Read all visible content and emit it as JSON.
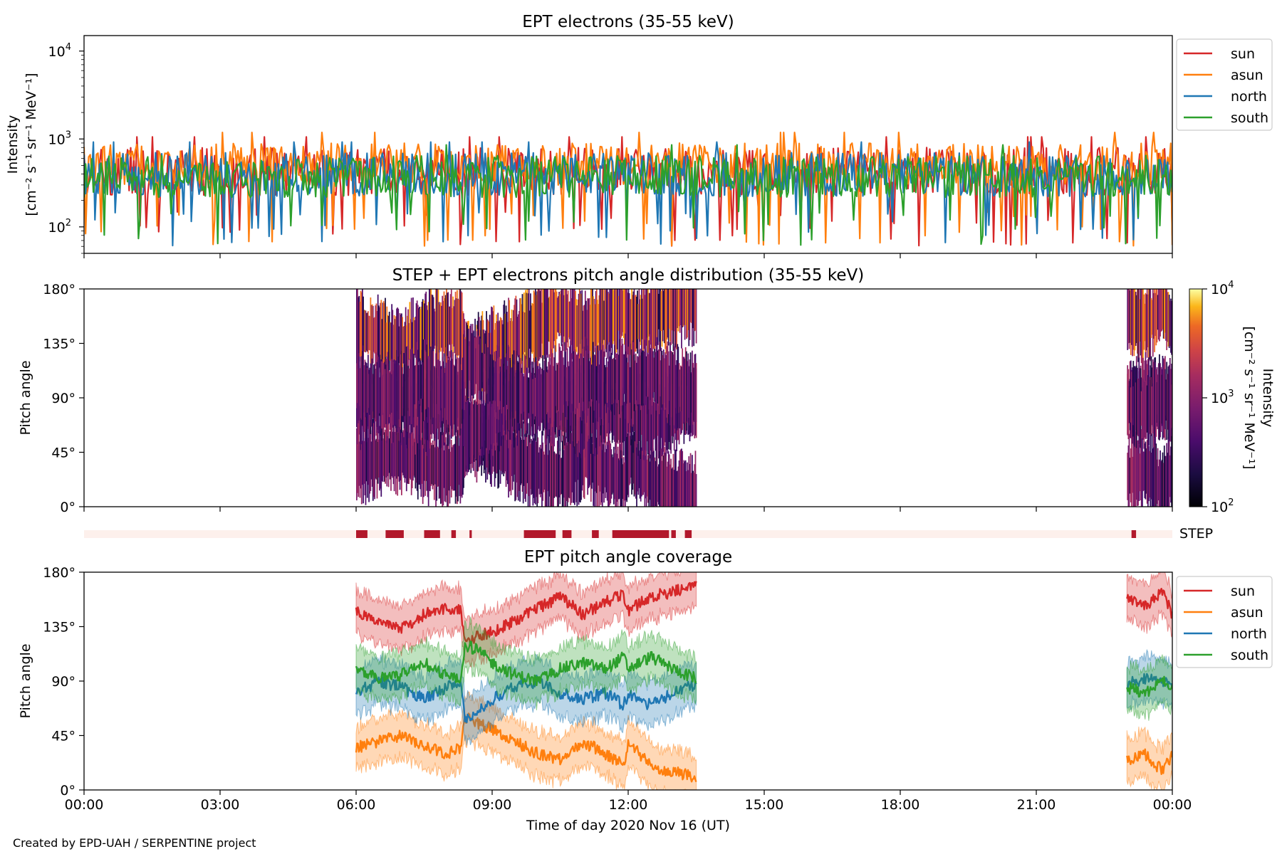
{
  "chart_data": [
    {
      "type": "line",
      "title": "EPT electrons (35-55 keV)",
      "ylabel_line1": "Intensity",
      "ylabel_line2": "[cm⁻² s⁻¹ sr⁻¹ MeV⁻¹]",
      "yscale": "log",
      "ylim": [
        50,
        15000
      ],
      "xlim": [
        0,
        24
      ],
      "yticks": [
        {
          "value": 100,
          "base": "10",
          "exp": "2"
        },
        {
          "value": 1000,
          "base": "10",
          "exp": "3"
        },
        {
          "value": 10000,
          "base": "10",
          "exp": "4"
        }
      ],
      "legend_position": "outside-right-top",
      "series": [
        {
          "name": "sun",
          "color": "#d62728",
          "typical_range": [
            150,
            800
          ],
          "min_dips": 60
        },
        {
          "name": "asun",
          "color": "#ff7f0e",
          "typical_range": [
            200,
            900
          ],
          "min_dips": 60
        },
        {
          "name": "north",
          "color": "#1f77b4",
          "typical_range": [
            150,
            700
          ],
          "min_dips": 60
        },
        {
          "name": "south",
          "color": "#2ca02c",
          "typical_range": [
            150,
            650
          ],
          "min_dips": 60
        }
      ]
    },
    {
      "type": "heatmap",
      "title": "STEP + EPT electrons pitch angle distribution (35-55 keV)",
      "ylabel": "Pitch angle",
      "ylim": [
        0,
        180
      ],
      "yticks": [
        {
          "value": 0,
          "label": "0°"
        },
        {
          "value": 45,
          "label": "45°"
        },
        {
          "value": 90,
          "label": "90°"
        },
        {
          "value": 135,
          "label": "135°"
        },
        {
          "value": 180,
          "label": "180°"
        }
      ],
      "xlim": [
        0,
        24
      ],
      "data_intervals_hours": [
        [
          6.0,
          13.5
        ],
        [
          23.0,
          24.0
        ]
      ],
      "colorbar": {
        "scale": "log",
        "range": [
          100,
          10000
        ],
        "colormap": "inferno",
        "label_line1": "Intensity",
        "label_line2": "[cm⁻² s⁻¹ sr⁻¹ MeV⁻¹]",
        "ticks": [
          {
            "value": 100,
            "base": "10",
            "exp": "2"
          },
          {
            "value": 1000,
            "base": "10",
            "exp": "3"
          },
          {
            "value": 10000,
            "base": "10",
            "exp": "4"
          }
        ]
      }
    },
    {
      "type": "bar",
      "label": "STEP",
      "description_values_hours": [
        [
          6.0,
          6.25
        ],
        [
          6.65,
          7.05
        ],
        [
          7.5,
          7.85
        ],
        [
          8.1,
          8.2
        ],
        [
          8.5,
          8.55
        ],
        [
          9.7,
          10.4
        ],
        [
          10.55,
          10.75
        ],
        [
          11.2,
          11.35
        ],
        [
          11.65,
          12.9
        ],
        [
          12.95,
          13.05
        ],
        [
          13.25,
          13.4
        ],
        [
          23.1,
          23.2
        ]
      ],
      "background_color": "#fdf0ec",
      "bar_color": "#b2182b",
      "xlim": [
        0,
        24
      ]
    },
    {
      "type": "line",
      "title": "EPT pitch angle coverage",
      "ylabel": "Pitch angle",
      "ylim": [
        0,
        180
      ],
      "yticks": [
        {
          "value": 0,
          "label": "0°"
        },
        {
          "value": 45,
          "label": "45°"
        },
        {
          "value": 90,
          "label": "90°"
        },
        {
          "value": 135,
          "label": "135°"
        },
        {
          "value": 180,
          "label": "180°"
        }
      ],
      "xlim": [
        0,
        24
      ],
      "xlabel": "Time of day 2020 Nov 16 (UT)",
      "xticks": [
        "00:00",
        "03:00",
        "06:00",
        "09:00",
        "12:00",
        "15:00",
        "18:00",
        "21:00",
        "00:00"
      ],
      "legend_position": "outside-right-top",
      "band_halfwidth_deg": 18,
      "series": [
        {
          "name": "sun",
          "color": "#d62728",
          "x": [
            6.0,
            6.5,
            7.0,
            7.5,
            8.0,
            8.3,
            8.4,
            8.7,
            9.0,
            9.5,
            10.0,
            10.5,
            11.0,
            11.5,
            11.9,
            12.0,
            12.5,
            13.0,
            13.5
          ],
          "y": [
            148,
            140,
            133,
            145,
            150,
            148,
            120,
            128,
            130,
            140,
            150,
            160,
            145,
            155,
            162,
            148,
            160,
            164,
            168
          ],
          "x2": [
            23.0,
            23.4,
            23.8,
            24.0
          ],
          "y2": [
            158,
            152,
            165,
            145
          ]
        },
        {
          "name": "asun",
          "color": "#ff7f0e",
          "x": [
            6.0,
            6.5,
            7.0,
            7.5,
            8.0,
            8.3,
            8.4,
            8.7,
            9.0,
            9.5,
            10.0,
            10.5,
            11.0,
            11.5,
            11.9,
            12.0,
            12.5,
            13.0,
            13.5
          ],
          "y": [
            35,
            40,
            45,
            37,
            30,
            35,
            60,
            55,
            50,
            40,
            30,
            25,
            40,
            30,
            20,
            40,
            20,
            15,
            10
          ],
          "x2": [
            23.0,
            23.4,
            23.8,
            24.0
          ],
          "y2": [
            25,
            30,
            15,
            30
          ]
        },
        {
          "name": "north",
          "color": "#1f77b4",
          "x": [
            6.0,
            6.5,
            7.0,
            7.5,
            8.0,
            8.3,
            8.4,
            8.7,
            9.0,
            9.5,
            10.0,
            10.5,
            11.0,
            11.5,
            11.9,
            12.0,
            12.5,
            13.0,
            13.5
          ],
          "y": [
            80,
            90,
            85,
            75,
            85,
            90,
            58,
            65,
            75,
            85,
            90,
            80,
            75,
            80,
            70,
            80,
            70,
            80,
            88
          ],
          "x2": [
            23.0,
            23.4,
            23.8,
            24.0
          ],
          "y2": [
            88,
            92,
            90,
            88
          ]
        },
        {
          "name": "south",
          "color": "#2ca02c",
          "x": [
            6.0,
            6.5,
            7.0,
            7.5,
            8.0,
            8.3,
            8.4,
            8.7,
            9.0,
            9.5,
            10.0,
            10.5,
            11.0,
            11.5,
            11.9,
            12.0,
            12.5,
            13.0,
            13.5
          ],
          "y": [
            100,
            92,
            95,
            105,
            95,
            90,
            120,
            115,
            105,
            95,
            90,
            100,
            105,
            100,
            110,
            100,
            110,
            100,
            92
          ],
          "x2": [
            23.0,
            23.4,
            23.8,
            24.0
          ],
          "y2": [
            85,
            80,
            90,
            82
          ]
        }
      ]
    }
  ],
  "credit": "Created by EPD-UAH / SERPENTINE project"
}
